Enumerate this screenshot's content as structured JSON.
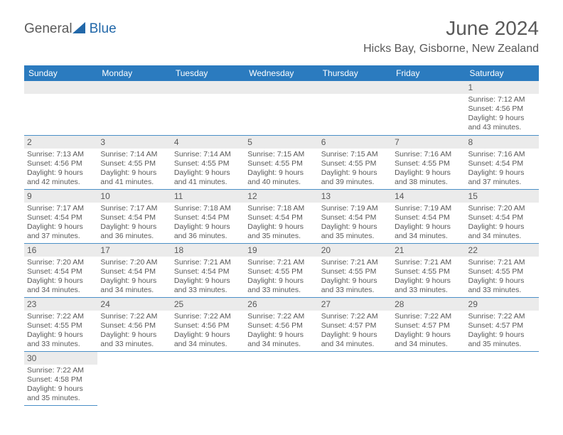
{
  "logo": {
    "word1": "General",
    "word2": "Blue"
  },
  "title": "June 2024",
  "location": "Hicks Bay, Gisborne, New Zealand",
  "dayHeaders": [
    "Sunday",
    "Monday",
    "Tuesday",
    "Wednesday",
    "Thursday",
    "Friday",
    "Saturday"
  ],
  "colors": {
    "headerBg": "#2b7bbf",
    "headerText": "#ffffff",
    "textMuted": "#595959",
    "dayBarBg": "#ebebeb",
    "rowBorder": "#4a8fc7",
    "logoGray": "#5a5a5a",
    "logoBlue": "#2268a9",
    "background": "#ffffff"
  },
  "grid": [
    [
      null,
      null,
      null,
      null,
      null,
      null,
      {
        "n": "1",
        "sr": "7:12 AM",
        "ss": "4:56 PM",
        "dl": "9 hours and 43 minutes."
      }
    ],
    [
      {
        "n": "2",
        "sr": "7:13 AM",
        "ss": "4:56 PM",
        "dl": "9 hours and 42 minutes."
      },
      {
        "n": "3",
        "sr": "7:14 AM",
        "ss": "4:55 PM",
        "dl": "9 hours and 41 minutes."
      },
      {
        "n": "4",
        "sr": "7:14 AM",
        "ss": "4:55 PM",
        "dl": "9 hours and 41 minutes."
      },
      {
        "n": "5",
        "sr": "7:15 AM",
        "ss": "4:55 PM",
        "dl": "9 hours and 40 minutes."
      },
      {
        "n": "6",
        "sr": "7:15 AM",
        "ss": "4:55 PM",
        "dl": "9 hours and 39 minutes."
      },
      {
        "n": "7",
        "sr": "7:16 AM",
        "ss": "4:55 PM",
        "dl": "9 hours and 38 minutes."
      },
      {
        "n": "8",
        "sr": "7:16 AM",
        "ss": "4:54 PM",
        "dl": "9 hours and 37 minutes."
      }
    ],
    [
      {
        "n": "9",
        "sr": "7:17 AM",
        "ss": "4:54 PM",
        "dl": "9 hours and 37 minutes."
      },
      {
        "n": "10",
        "sr": "7:17 AM",
        "ss": "4:54 PM",
        "dl": "9 hours and 36 minutes."
      },
      {
        "n": "11",
        "sr": "7:18 AM",
        "ss": "4:54 PM",
        "dl": "9 hours and 36 minutes."
      },
      {
        "n": "12",
        "sr": "7:18 AM",
        "ss": "4:54 PM",
        "dl": "9 hours and 35 minutes."
      },
      {
        "n": "13",
        "sr": "7:19 AM",
        "ss": "4:54 PM",
        "dl": "9 hours and 35 minutes."
      },
      {
        "n": "14",
        "sr": "7:19 AM",
        "ss": "4:54 PM",
        "dl": "9 hours and 34 minutes."
      },
      {
        "n": "15",
        "sr": "7:20 AM",
        "ss": "4:54 PM",
        "dl": "9 hours and 34 minutes."
      }
    ],
    [
      {
        "n": "16",
        "sr": "7:20 AM",
        "ss": "4:54 PM",
        "dl": "9 hours and 34 minutes."
      },
      {
        "n": "17",
        "sr": "7:20 AM",
        "ss": "4:54 PM",
        "dl": "9 hours and 34 minutes."
      },
      {
        "n": "18",
        "sr": "7:21 AM",
        "ss": "4:54 PM",
        "dl": "9 hours and 33 minutes."
      },
      {
        "n": "19",
        "sr": "7:21 AM",
        "ss": "4:55 PM",
        "dl": "9 hours and 33 minutes."
      },
      {
        "n": "20",
        "sr": "7:21 AM",
        "ss": "4:55 PM",
        "dl": "9 hours and 33 minutes."
      },
      {
        "n": "21",
        "sr": "7:21 AM",
        "ss": "4:55 PM",
        "dl": "9 hours and 33 minutes."
      },
      {
        "n": "22",
        "sr": "7:21 AM",
        "ss": "4:55 PM",
        "dl": "9 hours and 33 minutes."
      }
    ],
    [
      {
        "n": "23",
        "sr": "7:22 AM",
        "ss": "4:55 PM",
        "dl": "9 hours and 33 minutes."
      },
      {
        "n": "24",
        "sr": "7:22 AM",
        "ss": "4:56 PM",
        "dl": "9 hours and 33 minutes."
      },
      {
        "n": "25",
        "sr": "7:22 AM",
        "ss": "4:56 PM",
        "dl": "9 hours and 34 minutes."
      },
      {
        "n": "26",
        "sr": "7:22 AM",
        "ss": "4:56 PM",
        "dl": "9 hours and 34 minutes."
      },
      {
        "n": "27",
        "sr": "7:22 AM",
        "ss": "4:57 PM",
        "dl": "9 hours and 34 minutes."
      },
      {
        "n": "28",
        "sr": "7:22 AM",
        "ss": "4:57 PM",
        "dl": "9 hours and 34 minutes."
      },
      {
        "n": "29",
        "sr": "7:22 AM",
        "ss": "4:57 PM",
        "dl": "9 hours and 35 minutes."
      }
    ],
    [
      {
        "n": "30",
        "sr": "7:22 AM",
        "ss": "4:58 PM",
        "dl": "9 hours and 35 minutes."
      },
      null,
      null,
      null,
      null,
      null,
      null
    ]
  ],
  "labels": {
    "sunrise": "Sunrise:",
    "sunset": "Sunset:",
    "daylight": "Daylight:"
  }
}
